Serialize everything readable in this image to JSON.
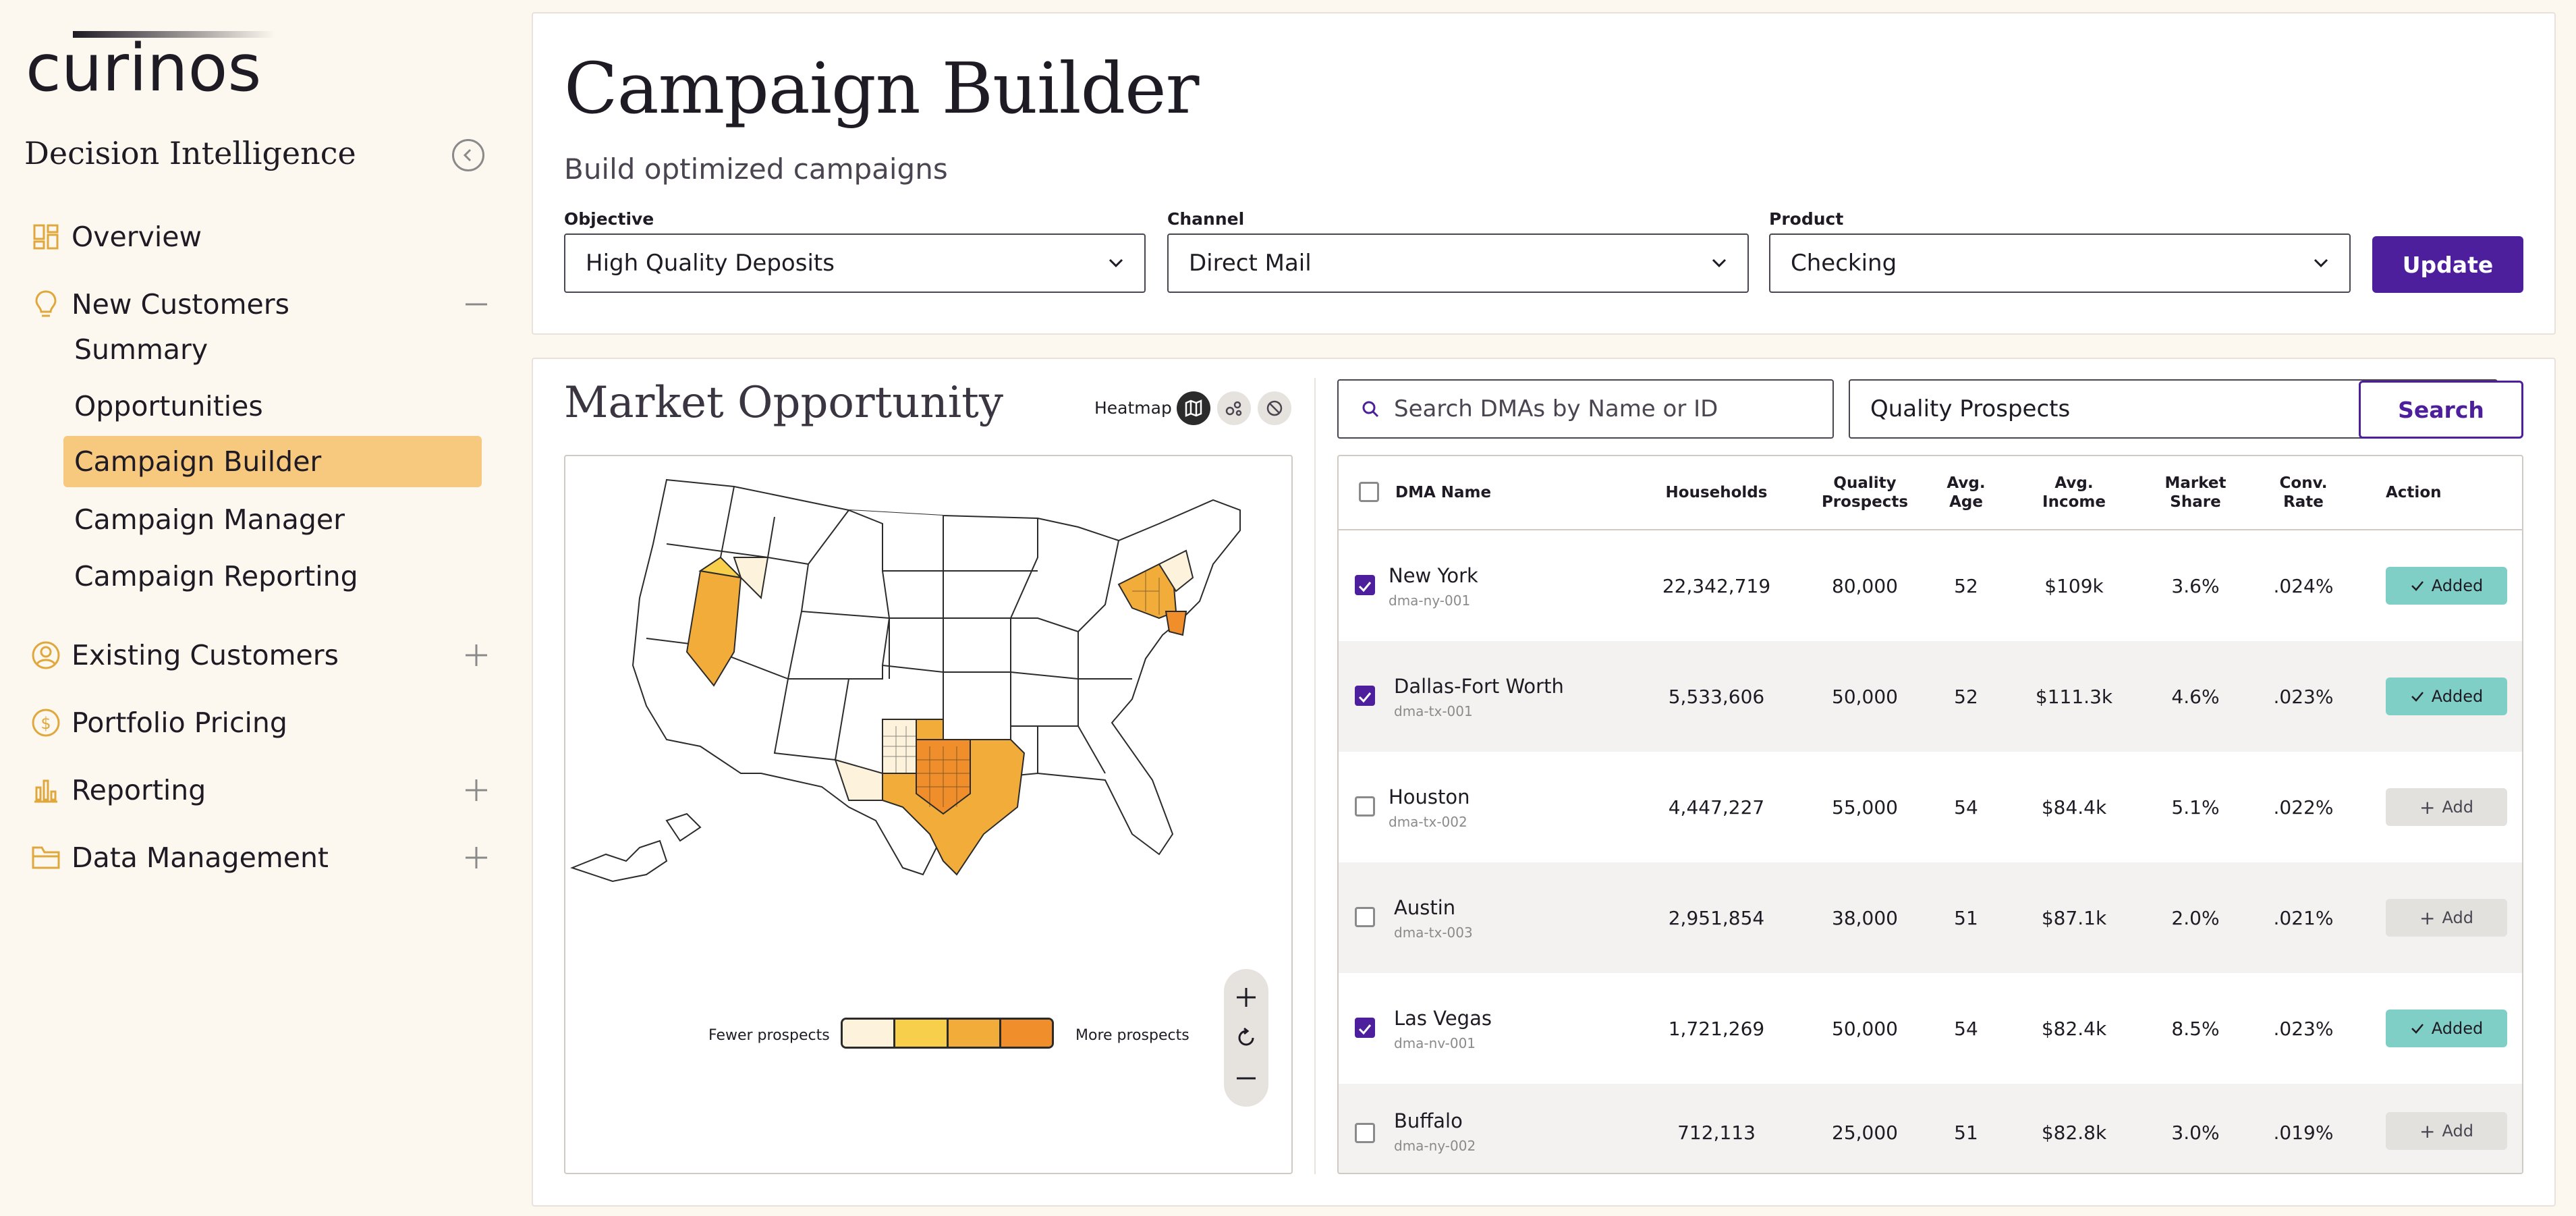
{
  "sidebar": {
    "logo_text": "curinos",
    "app_title": "Decision Intelligence",
    "nav": [
      {
        "label": "Overview",
        "icon": "dashboard-icon"
      },
      {
        "label": "New Customers",
        "icon": "lightbulb-icon",
        "expanded": true,
        "children": [
          "Summary",
          "Opportunities",
          "Campaign Builder",
          "Campaign Manager",
          "Campaign Reporting"
        ],
        "active_child": "Campaign Builder"
      },
      {
        "label": "Existing Customers",
        "icon": "user-circle-icon"
      },
      {
        "label": "Portfolio Pricing",
        "icon": "dollar-icon"
      },
      {
        "label": "Reporting",
        "icon": "bar-chart-icon"
      },
      {
        "label": "Data Management",
        "icon": "folder-icon"
      }
    ]
  },
  "header": {
    "title": "Campaign Builder",
    "subtitle": "Build optimized campaigns",
    "objective_label": "Objective",
    "objective_value": "High Quality Deposits",
    "channel_label": "Channel",
    "channel_value": "Direct Mail",
    "product_label": "Product",
    "product_value": "Checking",
    "update_label": "Update"
  },
  "market": {
    "title": "Market Opportunity",
    "heatmap_label": "Heatmap",
    "legend_low": "Fewer prospects",
    "legend_high": "More prospects",
    "legend_colors": [
      "#fdf2dc",
      "#f7cf4a",
      "#f2ac3a",
      "#ef8e2a"
    ]
  },
  "search": {
    "placeholder": "Search DMAs by Name or ID",
    "filter_value": "Quality Prospects",
    "button_label": "Search"
  },
  "table": {
    "headers": {
      "dma": "DMA Name",
      "households": "Households",
      "quality1": "Quality",
      "quality2": "Prospects",
      "age1": "Avg.",
      "age2": "Age",
      "income1": "Avg.",
      "income2": "Income",
      "share1": "Market",
      "share2": "Share",
      "conv1": "Conv.",
      "conv2": "Rate",
      "action": "Action"
    },
    "rows": [
      {
        "name": "New York",
        "id": "dma-ny-001",
        "households": "22,342,719",
        "prospects": "80,000",
        "age": "52",
        "income": "$109k",
        "share": "3.6%",
        "conv": ".024%",
        "checked": true,
        "action": "Added"
      },
      {
        "name": "Dallas-Fort Worth",
        "id": "dma-tx-001",
        "households": "5,533,606",
        "prospects": "50,000",
        "age": "52",
        "income": "$111.3k",
        "share": "4.6%",
        "conv": ".023%",
        "checked": true,
        "action": "Added"
      },
      {
        "name": "Houston",
        "id": "dma-tx-002",
        "households": "4,447,227",
        "prospects": "55,000",
        "age": "54",
        "income": "$84.4k",
        "share": "5.1%",
        "conv": ".022%",
        "checked": false,
        "action": "Add"
      },
      {
        "name": "Austin",
        "id": "dma-tx-003",
        "households": "2,951,854",
        "prospects": "38,000",
        "age": "51",
        "income": "$87.1k",
        "share": "2.0%",
        "conv": ".021%",
        "checked": false,
        "action": "Add"
      },
      {
        "name": "Las Vegas",
        "id": "dma-nv-001",
        "households": "1,721,269",
        "prospects": "50,000",
        "age": "54",
        "income": "$82.4k",
        "share": "8.5%",
        "conv": ".023%",
        "checked": true,
        "action": "Added"
      },
      {
        "name": "Buffalo",
        "id": "dma-ny-002",
        "households": "712,113",
        "prospects": "25,000",
        "age": "51",
        "income": "$82.8k",
        "share": "3.0%",
        "conv": ".019%",
        "checked": false,
        "action": "Add"
      }
    ]
  },
  "colors": {
    "accent": "#4d1f9c",
    "active_nav": "#f6c97e",
    "added": "#7fcfc6",
    "sidebar_bg": "#fdf8ef"
  }
}
